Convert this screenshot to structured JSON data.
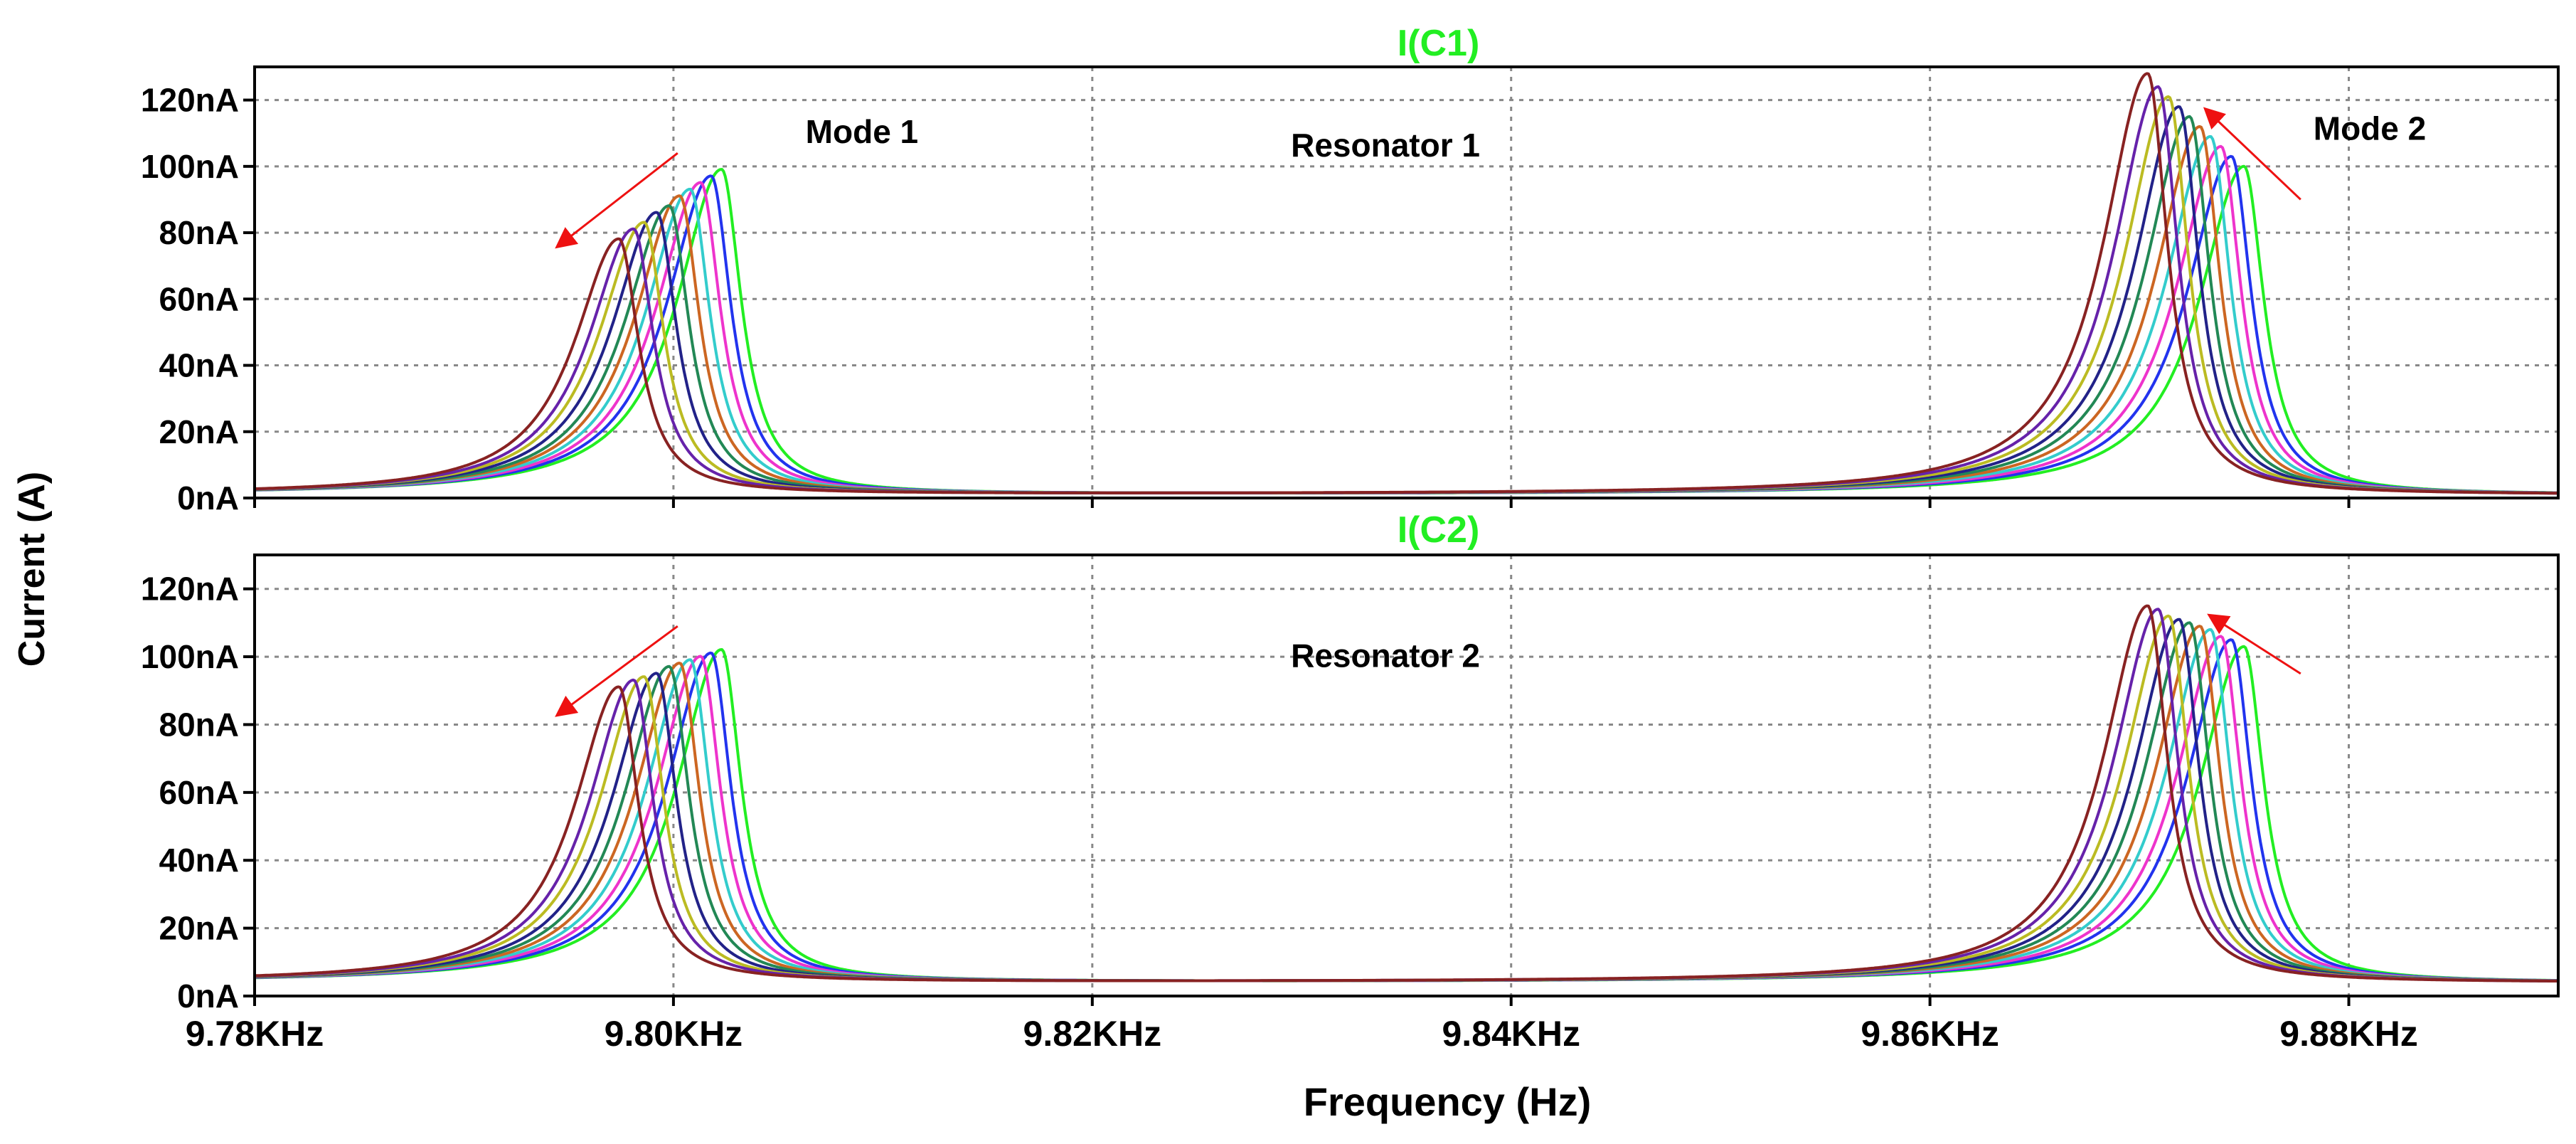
{
  "figure": {
    "ylabel": "Current (A)",
    "xlabel": "Frequency (Hz)"
  },
  "chart_data": [
    {
      "type": "line",
      "title": "I(C1)",
      "title_color": "#22ee22",
      "xlim": [
        9780,
        9890
      ],
      "ylim": [
        0,
        130
      ],
      "x_ticks": [
        9780,
        9800,
        9820,
        9840,
        9860,
        9880
      ],
      "x_tick_labels": [
        "9.78KHz",
        "9.80KHz",
        "9.82KHz",
        "9.84KHz",
        "9.86KHz",
        "9.88KHz"
      ],
      "y_ticks": [
        0,
        20,
        40,
        60,
        80,
        100,
        120
      ],
      "y_tick_labels": [
        "0nA",
        "20nA",
        "40nA",
        "60nA",
        "80nA",
        "100nA",
        "120nA"
      ],
      "grid": true,
      "annotations": [
        {
          "text": "Mode 1",
          "x": 9809,
          "y": 107
        },
        {
          "text": "Resonator 1",
          "x": 9834,
          "y": 103
        },
        {
          "text": "Mode 2",
          "x": 9881,
          "y": 108
        }
      ],
      "arrows": [
        {
          "from": [
            9800.2,
            104
          ],
          "to": [
            9794.5,
            76
          ]
        },
        {
          "from": [
            9877.7,
            90
          ],
          "to": [
            9873.2,
            117
          ]
        }
      ],
      "floor": 1,
      "tail": 3.3,
      "series": [
        {
          "color": "#22ee22",
          "f1": 9802.3,
          "a1": 98,
          "f2": 9875.0,
          "a2": 99
        },
        {
          "color": "#2233ee",
          "f1": 9801.8,
          "a1": 96,
          "f2": 9874.4,
          "a2": 102
        },
        {
          "color": "#ee33cc",
          "f1": 9801.3,
          "a1": 94,
          "f2": 9873.9,
          "a2": 105
        },
        {
          "color": "#33cccc",
          "f1": 9800.8,
          "a1": 92,
          "f2": 9873.4,
          "a2": 108
        },
        {
          "color": "#cc6622",
          "f1": 9800.3,
          "a1": 90,
          "f2": 9872.9,
          "a2": 111
        },
        {
          "color": "#228855",
          "f1": 9799.8,
          "a1": 87,
          "f2": 9872.4,
          "a2": 114
        },
        {
          "color": "#222288",
          "f1": 9799.2,
          "a1": 85,
          "f2": 9871.9,
          "a2": 117
        },
        {
          "color": "#bbbb22",
          "f1": 9798.6,
          "a1": 82,
          "f2": 9871.4,
          "a2": 120
        },
        {
          "color": "#6622aa",
          "f1": 9798.1,
          "a1": 80,
          "f2": 9870.9,
          "a2": 123
        },
        {
          "color": "#882222",
          "f1": 9797.4,
          "a1": 77,
          "f2": 9870.4,
          "a2": 127
        }
      ]
    },
    {
      "type": "line",
      "title": "I(C2)",
      "title_color": "#22ee22",
      "xlim": [
        9780,
        9890
      ],
      "ylim": [
        0,
        130
      ],
      "x_ticks": [
        9780,
        9800,
        9820,
        9840,
        9860,
        9880
      ],
      "x_tick_labels": [
        "9.78KHz",
        "9.80KHz",
        "9.82KHz",
        "9.84KHz",
        "9.86KHz",
        "9.88KHz"
      ],
      "y_ticks": [
        0,
        20,
        40,
        60,
        80,
        100,
        120
      ],
      "y_tick_labels": [
        "0nA",
        "20nA",
        "40nA",
        "60nA",
        "80nA",
        "100nA",
        "120nA"
      ],
      "grid": true,
      "annotations": [
        {
          "text": "Resonator 2",
          "x": 9834,
          "y": 97
        }
      ],
      "arrows": [
        {
          "from": [
            9800.2,
            109
          ],
          "to": [
            9794.5,
            83
          ]
        },
        {
          "from": [
            9877.7,
            95
          ],
          "to": [
            9873.4,
            112
          ]
        }
      ],
      "floor": 4,
      "tail": 3.5,
      "series": [
        {
          "color": "#22ee22",
          "f1": 9802.3,
          "a1": 98,
          "f2": 9875.0,
          "a2": 99
        },
        {
          "color": "#2233ee",
          "f1": 9801.8,
          "a1": 97,
          "f2": 9874.4,
          "a2": 101
        },
        {
          "color": "#ee33cc",
          "f1": 9801.3,
          "a1": 96,
          "f2": 9873.9,
          "a2": 102
        },
        {
          "color": "#33cccc",
          "f1": 9800.8,
          "a1": 95,
          "f2": 9873.4,
          "a2": 104
        },
        {
          "color": "#cc6622",
          "f1": 9800.3,
          "a1": 94,
          "f2": 9872.9,
          "a2": 105
        },
        {
          "color": "#228855",
          "f1": 9799.8,
          "a1": 93,
          "f2": 9872.4,
          "a2": 106
        },
        {
          "color": "#222288",
          "f1": 9799.2,
          "a1": 91,
          "f2": 9871.9,
          "a2": 107
        },
        {
          "color": "#bbbb22",
          "f1": 9798.6,
          "a1": 90,
          "f2": 9871.4,
          "a2": 108
        },
        {
          "color": "#6622aa",
          "f1": 9798.1,
          "a1": 89,
          "f2": 9870.9,
          "a2": 110
        },
        {
          "color": "#882222",
          "f1": 9797.4,
          "a1": 87,
          "f2": 9870.4,
          "a2": 111
        }
      ]
    }
  ]
}
